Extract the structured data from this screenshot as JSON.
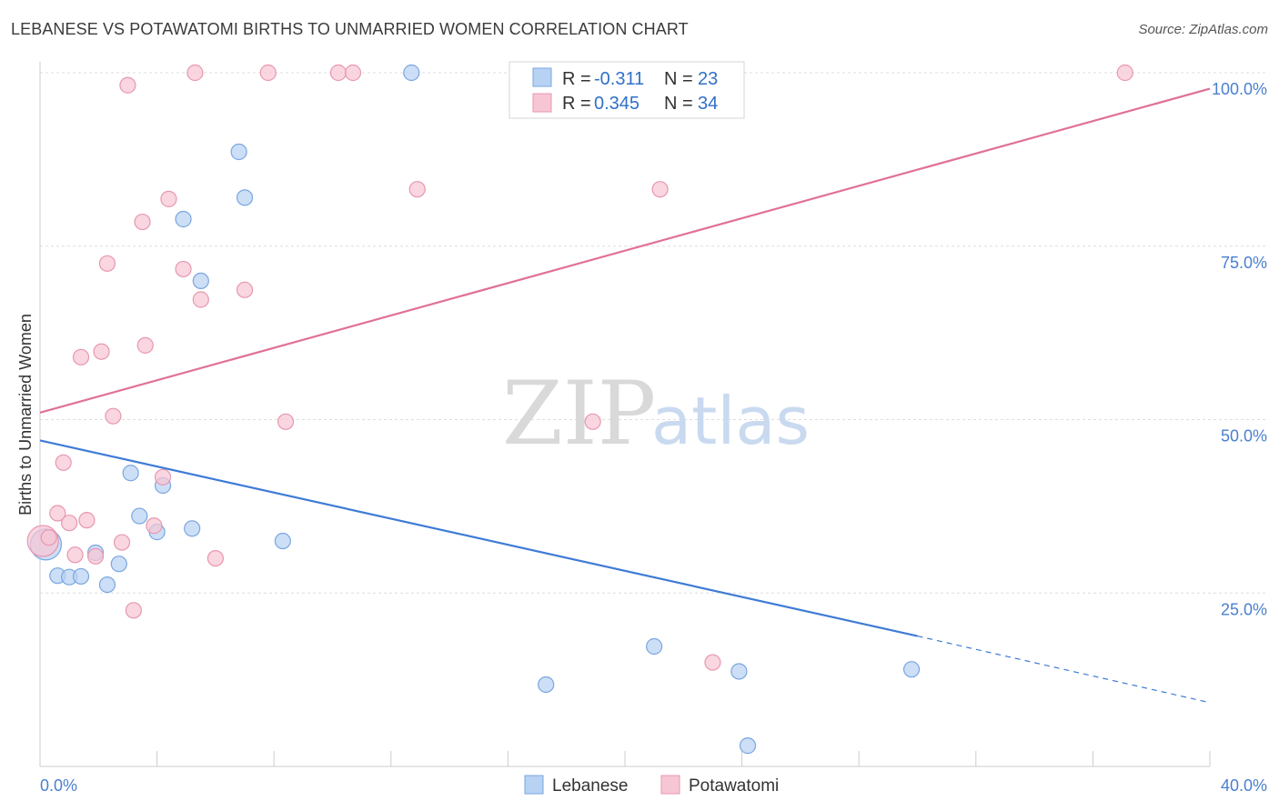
{
  "title": "LEBANESE VS POTAWATOMI BIRTHS TO UNMARRIED WOMEN CORRELATION CHART",
  "source": "Source: ZipAtlas.com",
  "watermark": {
    "zip": "ZIP",
    "atlas": "atlas"
  },
  "colors": {
    "lebanese_fill": "#b8d2f3",
    "lebanese_stroke": "#7aa6e0",
    "lebanese_line": "#3f7bd6",
    "potawatomi_fill": "#f7c6d4",
    "potawatomi_stroke": "#e897b0",
    "potawatomi_line": "#e07098",
    "grid": "#dddddd",
    "axis_text": "#4a7fd0"
  },
  "legend": {
    "rows": [
      {
        "r_label": "R = ",
        "r_value": "-0.311",
        "n_label": "N = ",
        "n_value": "23"
      },
      {
        "r_label": "R = ",
        "r_value": "0.345",
        "n_label": "N = ",
        "n_value": "34"
      }
    ]
  },
  "chart_data": {
    "type": "scatter",
    "title": "LEBANESE VS POTAWATOMI BIRTHS TO UNMARRIED WOMEN CORRELATION CHART",
    "xlabel": "",
    "ylabel": "Births to Unmarried Women",
    "xlim": [
      0,
      40
    ],
    "ylim": [
      0,
      100
    ],
    "x_tick_labels": [
      "0.0%",
      "40.0%"
    ],
    "y_tick_labels": [
      "25.0%",
      "50.0%",
      "75.0%",
      "100.0%"
    ],
    "y_ticks": [
      25,
      50,
      75,
      100
    ],
    "legend_position": "bottom",
    "series": [
      {
        "name": "Lebanese",
        "points": [
          {
            "x": 0.2,
            "y": 32.0,
            "big": true
          },
          {
            "x": 0.6,
            "y": 27.5
          },
          {
            "x": 1.0,
            "y": 27.3
          },
          {
            "x": 1.4,
            "y": 27.4
          },
          {
            "x": 1.9,
            "y": 30.8
          },
          {
            "x": 2.3,
            "y": 26.2
          },
          {
            "x": 2.7,
            "y": 29.2
          },
          {
            "x": 3.1,
            "y": 42.3
          },
          {
            "x": 3.4,
            "y": 36.1
          },
          {
            "x": 4.0,
            "y": 33.8
          },
          {
            "x": 4.2,
            "y": 40.5
          },
          {
            "x": 4.9,
            "y": 78.9
          },
          {
            "x": 5.2,
            "y": 34.3
          },
          {
            "x": 5.5,
            "y": 70.0
          },
          {
            "x": 6.8,
            "y": 88.6
          },
          {
            "x": 7.0,
            "y": 82.0
          },
          {
            "x": 8.3,
            "y": 32.5
          },
          {
            "x": 12.7,
            "y": 100.0
          },
          {
            "x": 17.3,
            "y": 11.8
          },
          {
            "x": 21.0,
            "y": 17.3
          },
          {
            "x": 23.9,
            "y": 13.7
          },
          {
            "x": 24.2,
            "y": 3.0
          },
          {
            "x": 29.8,
            "y": 14.0
          }
        ],
        "trend": {
          "x0": 0,
          "y0": 47.0,
          "x1": 30,
          "y1": 18.8,
          "x_dash_end": 40,
          "y_dash_end": 9.2
        }
      },
      {
        "name": "Potawatomi",
        "points": [
          {
            "x": 0.1,
            "y": 32.5,
            "big": true
          },
          {
            "x": 0.3,
            "y": 33.0
          },
          {
            "x": 0.6,
            "y": 36.5
          },
          {
            "x": 0.8,
            "y": 43.8
          },
          {
            "x": 1.0,
            "y": 35.1
          },
          {
            "x": 1.2,
            "y": 30.5
          },
          {
            "x": 1.4,
            "y": 59.0
          },
          {
            "x": 1.6,
            "y": 35.5
          },
          {
            "x": 1.9,
            "y": 30.3
          },
          {
            "x": 2.1,
            "y": 59.8
          },
          {
            "x": 2.3,
            "y": 72.5
          },
          {
            "x": 2.5,
            "y": 50.5
          },
          {
            "x": 2.8,
            "y": 32.3
          },
          {
            "x": 3.0,
            "y": 98.2
          },
          {
            "x": 3.2,
            "y": 22.5
          },
          {
            "x": 3.5,
            "y": 78.5
          },
          {
            "x": 3.6,
            "y": 60.7
          },
          {
            "x": 3.9,
            "y": 34.7
          },
          {
            "x": 4.2,
            "y": 41.7
          },
          {
            "x": 4.4,
            "y": 81.8
          },
          {
            "x": 4.9,
            "y": 71.7
          },
          {
            "x": 5.3,
            "y": 100.0
          },
          {
            "x": 5.5,
            "y": 67.3
          },
          {
            "x": 6.0,
            "y": 30.0
          },
          {
            "x": 7.0,
            "y": 68.7
          },
          {
            "x": 7.8,
            "y": 100.0
          },
          {
            "x": 8.4,
            "y": 49.7
          },
          {
            "x": 10.2,
            "y": 100.0
          },
          {
            "x": 10.7,
            "y": 100.0
          },
          {
            "x": 12.9,
            "y": 83.2
          },
          {
            "x": 18.9,
            "y": 49.7
          },
          {
            "x": 21.2,
            "y": 83.2
          },
          {
            "x": 23.0,
            "y": 15.0
          },
          {
            "x": 37.1,
            "y": 100.0
          }
        ],
        "trend": {
          "x0": 0,
          "y0": 51.0,
          "x1": 40,
          "y1": 97.7
        }
      }
    ]
  }
}
